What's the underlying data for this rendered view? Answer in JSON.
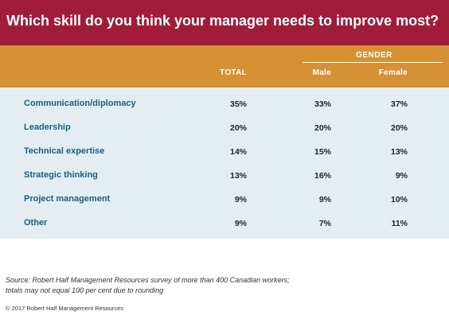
{
  "title": "Which skill do you think your manager needs to improve most?",
  "colors": {
    "title_bg": "#a01c38",
    "header_bg": "#d69134",
    "table_bg": "#e4eef2",
    "label_text": "#17617a"
  },
  "header": {
    "group_label": "GENDER",
    "total_label": "TOTAL",
    "male_label": "Male",
    "female_label": "Female"
  },
  "chart_data": {
    "type": "table",
    "title": "Which skill do you think your manager needs to improve most?",
    "columns": [
      "TOTAL",
      "Male",
      "Female"
    ],
    "column_group": "GENDER",
    "rows": [
      {
        "label": "Communication/diplomacy",
        "total": "35%",
        "male": "33%",
        "female": "37%"
      },
      {
        "label": "Leadership",
        "total": "20%",
        "male": "20%",
        "female": "20%"
      },
      {
        "label": "Technical expertise",
        "total": "14%",
        "male": "15%",
        "female": "13%"
      },
      {
        "label": "Strategic thinking",
        "total": "13%",
        "male": "16%",
        "female": "9%"
      },
      {
        "label": "Project management",
        "total": "9%",
        "male": "9%",
        "female": "10%"
      },
      {
        "label": "Other",
        "total": "9%",
        "male": "7%",
        "female": "11%"
      }
    ]
  },
  "source_line1": "Source: Robert Half Management Resources survey of more than 400 Canadian workers;",
  "source_line2": "totals may not equal 100 per cent due to rounding",
  "copyright": "© 2017 Robert Half Management Resources"
}
